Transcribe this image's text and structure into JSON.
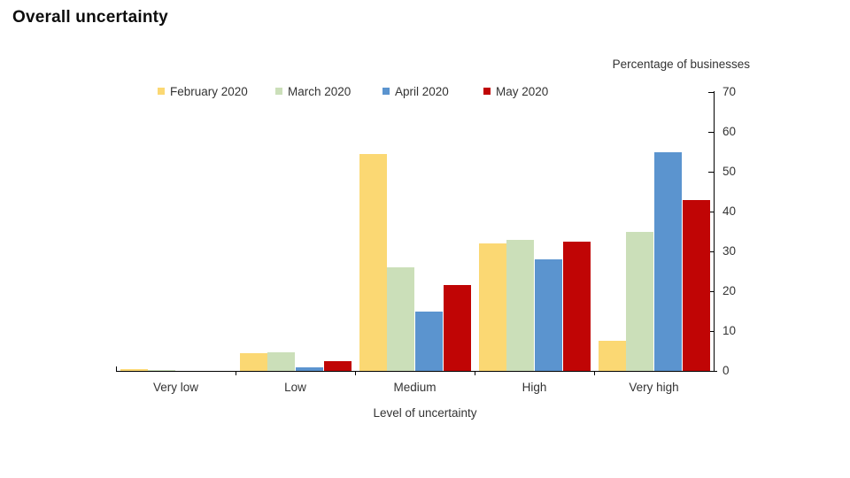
{
  "title": "Overall uncertainty",
  "top_note": "Percentage of businesses",
  "chart_data": {
    "type": "bar",
    "title": "Overall uncertainty",
    "subtitle": "",
    "unit_note": "Percentage of businesses",
    "categories": [
      "Very low",
      "Low",
      "Medium",
      "High",
      "Very high"
    ],
    "series": [
      {
        "name": "February 2020",
        "color": "#FBD873",
        "values": [
          0.5,
          4.5,
          54.5,
          32,
          7.5
        ]
      },
      {
        "name": "March 2020",
        "color": "#CBDFB9",
        "values": [
          0.2,
          4.7,
          26,
          33,
          35
        ]
      },
      {
        "name": "April 2020",
        "color": "#5B94CF",
        "values": [
          0,
          1,
          15,
          28,
          55
        ]
      },
      {
        "name": "May 2020",
        "color": "#C00505",
        "values": [
          0,
          2.5,
          21.5,
          32.5,
          43
        ]
      }
    ],
    "xlabel": "Level of uncertainty",
    "ylabel": "Percentage of businesses",
    "ylim": [
      0,
      70
    ],
    "yticks": [
      0,
      10,
      20,
      30,
      40,
      50,
      60,
      70
    ],
    "grid": false,
    "legend_position": "top",
    "y_axis_side": "right",
    "background": "#ffffff",
    "text_color": "#333333"
  }
}
